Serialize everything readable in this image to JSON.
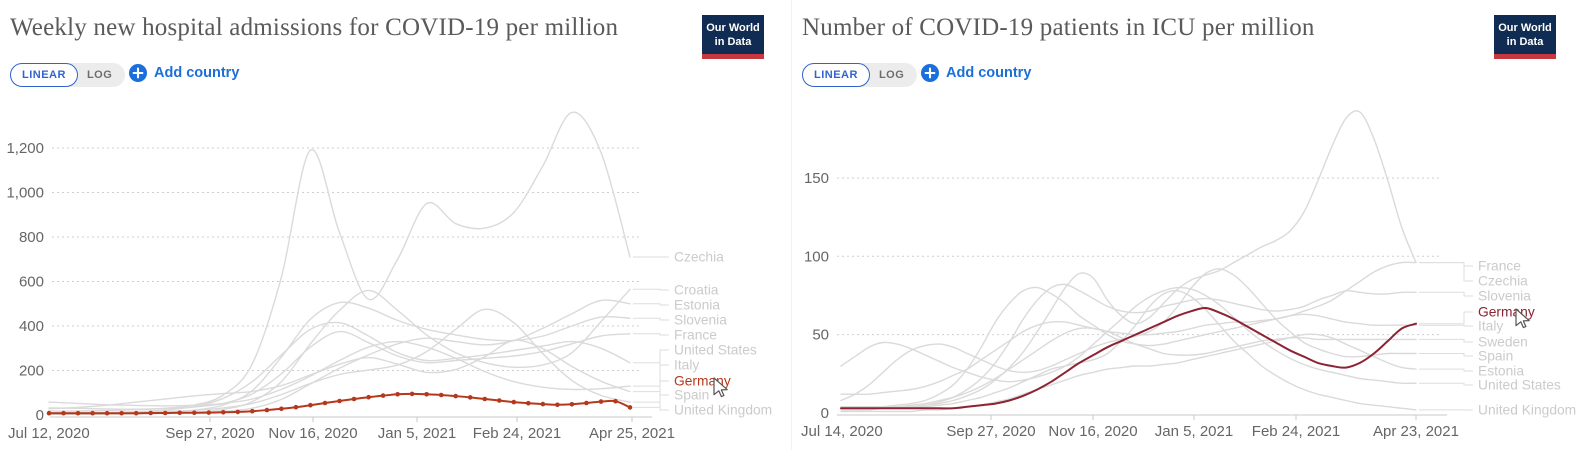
{
  "brand": {
    "logo_line1": "Our World",
    "logo_line2": "in Data"
  },
  "ui_colors": {
    "accent_blue": "#3163ce",
    "add_country_blue": "#1a6fdb",
    "logo_navy": "#102c52",
    "logo_red": "#c7373f",
    "germany_left": "#b5381d",
    "germany_right": "#8b2333",
    "neutral_line": "#dadada",
    "axis_text": "#666666",
    "label_gray": "#cbcbcb"
  },
  "panels": [
    {
      "title": "Weekly new hospital admissions for COVID-19 per million",
      "controls": {
        "linear": "LINEAR",
        "log": "LOG",
        "add_country": "Add country"
      }
    },
    {
      "title": "Number of COVID-19 patients in ICU per million",
      "controls": {
        "linear": "LINEAR",
        "log": "LOG",
        "add_country": "Add country"
      }
    }
  ],
  "chart_data": [
    {
      "type": "line",
      "title": "Weekly new hospital admissions for COVID-19 per million",
      "xlabel": "",
      "ylabel": "",
      "x_range": [
        "Jul 12, 2020",
        "Apr 25, 2021"
      ],
      "ylim": [
        0,
        1380
      ],
      "grid": "dashed-horizontal",
      "legend_position": "right",
      "x_axis": {
        "ticks": [
          "Jul 12, 2020",
          "Sep 27, 2020",
          "Nov 16, 2020",
          "Jan 5, 2021",
          "Feb 24, 2021",
          "Apr 25, 2021"
        ]
      },
      "y_axis": {
        "ticks": [
          {
            "value": 0,
            "label": "0"
          },
          {
            "value": 200,
            "label": "200"
          },
          {
            "value": 400,
            "label": "400"
          },
          {
            "value": 600,
            "label": "600"
          },
          {
            "value": 800,
            "label": "800"
          },
          {
            "value": 1000,
            "label": "1,000"
          },
          {
            "value": 1200,
            "label": "1,200"
          }
        ]
      },
      "legend": [
        "Czechia",
        "Croatia",
        "Estonia",
        "Slovenia",
        "France",
        "United States",
        "Italy",
        "Germany",
        "Spain",
        "United Kingdom"
      ],
      "series": [
        {
          "name": "Czechia",
          "color": "#dadada",
          "focus": false,
          "markers": false,
          "values": [
            18,
            18,
            20,
            24,
            30,
            45,
            90,
            230,
            620,
            1190,
            820,
            520,
            700,
            950,
            860,
            840,
            910,
            1120,
            1360,
            1180,
            710
          ]
        },
        {
          "name": "Croatia",
          "color": "#dadada",
          "focus": false,
          "markers": false,
          "values": [
            4,
            4,
            5,
            6,
            8,
            12,
            25,
            60,
            150,
            320,
            470,
            560,
            470,
            360,
            280,
            235,
            215,
            225,
            280,
            420,
            565
          ]
        },
        {
          "name": "Estonia",
          "color": "#dadada",
          "focus": false,
          "markers": false,
          "values": [
            3,
            3,
            4,
            5,
            7,
            10,
            16,
            30,
            70,
            140,
            210,
            270,
            320,
            345,
            330,
            315,
            335,
            390,
            455,
            515,
            500
          ]
        },
        {
          "name": "Slovenia",
          "color": "#dadada",
          "focus": false,
          "markers": false,
          "values": [
            4,
            4,
            5,
            7,
            12,
            22,
            45,
            110,
            260,
            430,
            505,
            480,
            425,
            385,
            360,
            340,
            335,
            355,
            400,
            440,
            435
          ]
        },
        {
          "name": "France",
          "color": "#dadada",
          "focus": false,
          "markers": false,
          "values": [
            32,
            30,
            27,
            26,
            29,
            36,
            52,
            95,
            185,
            305,
            375,
            325,
            265,
            235,
            245,
            255,
            265,
            285,
            320,
            355,
            365
          ]
        },
        {
          "name": "United States",
          "color": "#dadada",
          "focus": false,
          "markers": false,
          "values": [
            58,
            52,
            46,
            43,
            41,
            44,
            52,
            72,
            115,
            175,
            245,
            305,
            330,
            305,
            255,
            195,
            150,
            125,
            115,
            118,
            130
          ]
        },
        {
          "name": "Italy",
          "color": "#dadada",
          "focus": false,
          "markers": false,
          "values": [
            9,
            9,
            11,
            15,
            22,
            38,
            75,
            150,
            270,
            385,
            415,
            355,
            280,
            245,
            255,
            270,
            290,
            310,
            330,
            300,
            235
          ]
        },
        {
          "name": "Spain",
          "color": "#dadada",
          "focus": false,
          "markers": false,
          "values": [
            28,
            34,
            44,
            58,
            72,
            86,
            96,
            106,
            132,
            180,
            228,
            258,
            228,
            192,
            205,
            262,
            335,
            298,
            218,
            152,
            105
          ]
        },
        {
          "name": "United Kingdom",
          "color": "#dadada",
          "focus": false,
          "markers": false,
          "values": [
            11,
            11,
            11,
            13,
            16,
            21,
            32,
            52,
            92,
            142,
            182,
            202,
            225,
            285,
            385,
            475,
            415,
            275,
            155,
            88,
            58
          ]
        },
        {
          "name": "Germany",
          "color": "#b5381d",
          "focus": true,
          "markers": true,
          "values": [
            8,
            8,
            8,
            8,
            8,
            8,
            8,
            9,
            9,
            10,
            10,
            11,
            12,
            14,
            17,
            22,
            28,
            35,
            44,
            54,
            63,
            72,
            80,
            87,
            93,
            95,
            93,
            90,
            85,
            79,
            72,
            65,
            58,
            53,
            49,
            46,
            48,
            54,
            60,
            62,
            34
          ]
        }
      ]
    },
    {
      "type": "line",
      "title": "Number of COVID-19 patients in ICU per million",
      "xlabel": "",
      "ylabel": "",
      "x_range": [
        "Jul 14, 2020",
        "Apr 23, 2021"
      ],
      "ylim": [
        0,
        195
      ],
      "grid": "dashed-horizontal",
      "legend_position": "right",
      "x_axis": {
        "ticks": [
          "Jul 14, 2020",
          "Sep 27, 2020",
          "Nov 16, 2020",
          "Jan 5, 2021",
          "Feb 24, 2021",
          "Apr 23, 2021"
        ]
      },
      "y_axis": {
        "ticks": [
          {
            "value": 0,
            "label": "0"
          },
          {
            "value": 50,
            "label": "50"
          },
          {
            "value": 100,
            "label": "100"
          },
          {
            "value": 150,
            "label": "150"
          }
        ]
      },
      "legend": [
        "France",
        "Czechia",
        "Slovenia",
        "Germany",
        "Italy",
        "Sweden",
        "Spain",
        "Estonia",
        "United States",
        "United Kingdom"
      ],
      "series": [
        {
          "name": "United States",
          "color": "#dadada",
          "focus": false,
          "markers": false,
          "values": [
            30,
            36,
            42,
            45,
            44,
            41,
            37,
            33,
            29,
            26,
            23,
            21,
            20,
            21,
            23,
            26,
            30,
            36,
            44,
            52,
            60,
            68,
            74,
            78,
            80,
            79,
            75,
            69,
            61,
            53,
            46,
            40,
            35,
            31,
            28,
            26,
            24,
            22,
            21,
            20,
            19,
            19
          ]
        },
        {
          "name": "France",
          "color": "#dadada",
          "focus": false,
          "markers": false,
          "values": [
            12,
            12,
            12,
            13,
            14,
            15,
            17,
            20,
            24,
            28,
            34,
            40,
            46,
            52,
            56,
            58,
            58,
            56,
            54,
            52,
            51,
            50,
            50,
            51,
            52,
            54,
            56,
            57,
            58,
            58,
            59,
            60,
            62,
            65,
            68,
            72,
            78,
            84,
            90,
            94,
            96,
            96
          ]
        },
        {
          "name": "Czechia",
          "color": "#dadada",
          "focus": false,
          "markers": false,
          "values": [
            3,
            3,
            3,
            3,
            4,
            4,
            5,
            6,
            8,
            11,
            15,
            21,
            29,
            39,
            52,
            66,
            80,
            89,
            86,
            72,
            62,
            57,
            61,
            70,
            79,
            85,
            88,
            91,
            96,
            101,
            106,
            110,
            116,
            128,
            148,
            170,
            188,
            192,
            175,
            148,
            118,
            96
          ]
        },
        {
          "name": "Slovenia",
          "color": "#dadada",
          "focus": false,
          "markers": false,
          "values": [
            2,
            2,
            2,
            3,
            3,
            4,
            5,
            7,
            10,
            15,
            22,
            32,
            45,
            60,
            72,
            80,
            82,
            78,
            73,
            68,
            65,
            64,
            65,
            68,
            70,
            72,
            73,
            72,
            70,
            68,
            66,
            65,
            66,
            68,
            72,
            75,
            78,
            77,
            76,
            76,
            77,
            77
          ]
        },
        {
          "name": "Italy",
          "color": "#dadada",
          "focus": false,
          "markers": false,
          "values": [
            3,
            3,
            3,
            4,
            5,
            6,
            8,
            12,
            18,
            28,
            42,
            58,
            70,
            78,
            80,
            76,
            70,
            62,
            56,
            50,
            46,
            44,
            43,
            44,
            46,
            48,
            50,
            52,
            54,
            56,
            58,
            60,
            62,
            63,
            62,
            60,
            58,
            57,
            56,
            56,
            56,
            56
          ]
        },
        {
          "name": "Sweden",
          "color": "#dadada",
          "focus": false,
          "markers": false,
          "values": [
            4,
            4,
            4,
            4,
            4,
            5,
            6,
            8,
            10,
            13,
            17,
            22,
            28,
            34,
            40,
            46,
            51,
            54,
            54,
            52,
            48,
            44,
            41,
            38,
            37,
            37,
            38,
            40,
            42,
            44,
            46,
            47,
            48,
            48,
            47,
            47,
            47,
            47,
            47,
            47,
            47,
            47
          ]
        },
        {
          "name": "Spain",
          "color": "#dadada",
          "focus": false,
          "markers": false,
          "values": [
            8,
            12,
            18,
            26,
            34,
            40,
            43,
            44,
            42,
            38,
            34,
            30,
            27,
            26,
            27,
            30,
            34,
            38,
            42,
            45,
            47,
            49,
            52,
            58,
            68,
            80,
            89,
            92,
            88,
            80,
            70,
            60,
            52,
            45,
            41,
            38,
            36,
            36,
            37,
            38,
            38,
            38
          ]
        },
        {
          "name": "Estonia",
          "color": "#dadada",
          "focus": false,
          "markers": false,
          "values": [
            1,
            1,
            1,
            1,
            1,
            1,
            2,
            2,
            3,
            4,
            5,
            7,
            9,
            12,
            15,
            18,
            21,
            24,
            26,
            28,
            29,
            30,
            30,
            31,
            32,
            34,
            36,
            38,
            40,
            42,
            44,
            46,
            48,
            50,
            50,
            48,
            44,
            40,
            36,
            32,
            29,
            28
          ]
        },
        {
          "name": "United Kingdom",
          "color": "#dadada",
          "focus": false,
          "markers": false,
          "values": [
            4,
            4,
            4,
            4,
            4,
            4,
            4,
            5,
            6,
            8,
            10,
            13,
            16,
            20,
            24,
            28,
            30,
            32,
            34,
            38,
            46,
            56,
            68,
            76,
            78,
            74,
            66,
            56,
            46,
            38,
            30,
            24,
            19,
            15,
            12,
            10,
            8,
            6,
            5,
            4,
            3,
            2
          ]
        },
        {
          "name": "Germany",
          "color": "#8b2333",
          "focus": true,
          "markers": false,
          "values": [
            3,
            3,
            3,
            3,
            3,
            3,
            3,
            3,
            3,
            4,
            5,
            6,
            8,
            11,
            15,
            20,
            26,
            32,
            37,
            42,
            46,
            50,
            54,
            58,
            62,
            65,
            67,
            64,
            60,
            55,
            50,
            45,
            40,
            36,
            32,
            30,
            29,
            32,
            38,
            46,
            54,
            57
          ]
        }
      ]
    }
  ]
}
